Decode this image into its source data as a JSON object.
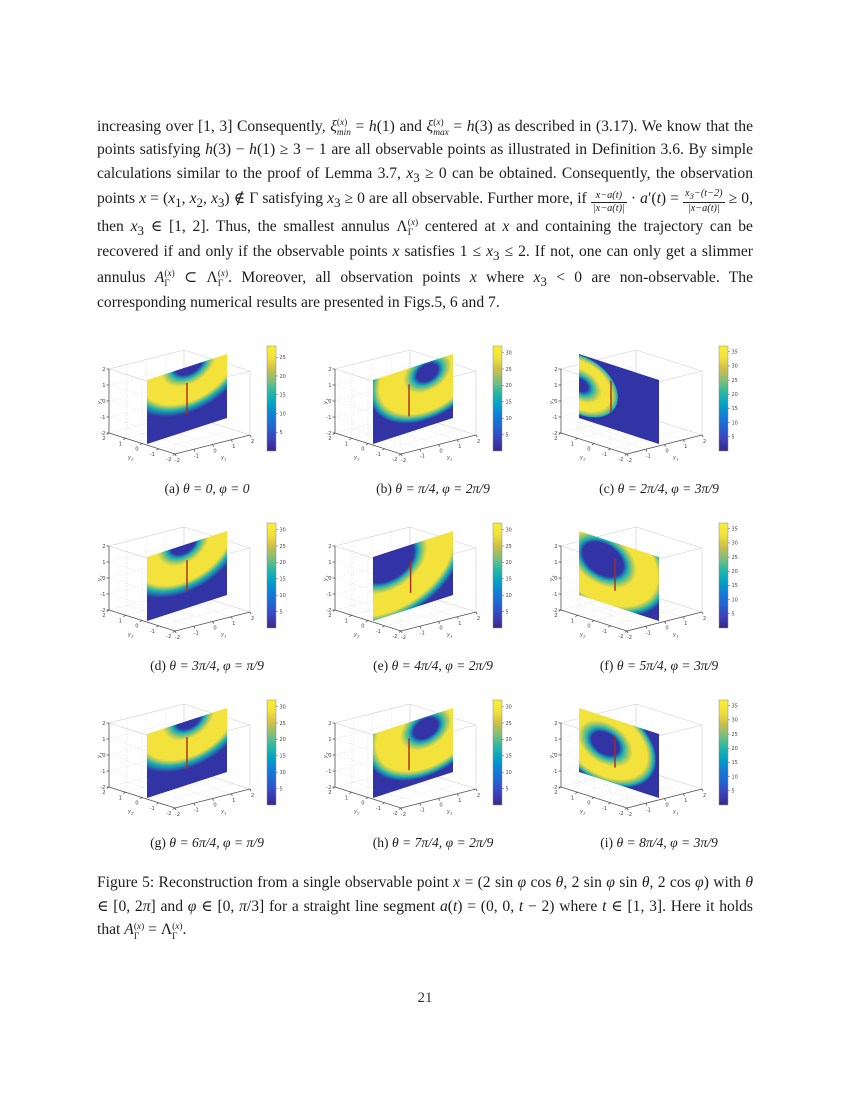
{
  "page": {
    "number": "21"
  },
  "paragraph_html": "increasing over [1, 3] Consequently, <i>ξ</i><span class='ss'><sup>(<i>x</i>)</sup><sub><i>min</i></sub></span> = <i>h</i>(1) and <i>ξ</i><span class='ss'><sup>(<i>x</i>)</sup><sub><i>max</i></sub></span> = <i>h</i>(3) as described in (3.17). We know that the points satisfying <i>h</i>(3) − <i>h</i>(1) ≥ 3 − 1 are all observable points as illustrated in Definition 3.6. By simple calculations similar to the proof of Lemma 3.7, <i>x</i><sub>3</sub> ≥ 0 can be obtained. Consequently, the observation points <i>x</i> = (<i>x</i><sub>1</sub>, <i>x</i><sub>2</sub>, <i>x</i><sub>3</sub>) ∉ Γ satisfying <i>x</i><sub>3</sub> ≥ 0 are all observable. Further more, if <span class='fr'><span>x−a(t)</span><span class='de'>|x−a(t)|</span></span> · <i>a</i>′(<i>t</i>) = <span class='fr'><span>x<sub>3</sub>−(t−2)</span><span class='de'>|x−a(t)|</span></span> ≥ 0, then <i>x</i><sub>3</sub> ∈ [1, 2]. Thus, the smallest annulus Λ<span class='ss'><sup>(<i>x</i>)</sup><sub>Γ</sub></span> centered at <i>x</i> and containing the trajectory can be recovered if and only if the observable points <i>x</i> satisfies 1 ≤ <i>x</i><sub>3</sub> ≤ 2. If not, one can only get a slimmer annulus <i>A</i><span class='ss'><sup>(<i>x</i>)</sup><sub>Γ</sub></span> ⊂ Λ<span class='ss'><sup>(<i>x</i>)</sup><sub>Γ</sub></span>. Moreover, all observation points <i>x</i> where <i>x</i><sub>3</sub> &lt; 0 are non-observable. The corresponding numerical results are presented in Figs.5, 6 and 7.",
  "figure": {
    "caption_html": "Figure 5: Reconstruction from a single observable point <i>x</i> = (2 sin <i>φ</i> cos <i>θ</i>, 2 sin <i>φ</i> sin <i>θ</i>, 2 cos <i>φ</i>) with <i>θ</i> ∈ [0, 2<i>π</i>] and <i>φ</i> ∈ [0, <i>π</i>/3] for a straight line segment <i>a</i>(<i>t</i>) = (0, 0, <i>t</i> − 2) where <i>t</i> ∈ [1, 3]. Here it holds that <i>A</i><span class='ss'><sup>(<i>x</i>)</sup><sub>Γ</sub></span> = Λ<span class='ss'><sup>(<i>x</i>)</sup><sub>Γ</sub></span>."
  },
  "chart_data": {
    "type": "heatmap",
    "description": "3x3 grid of MATLAB-style 3D slice plots (parula colormap). Each shows a vertical plane through the axes colored by the reconstruction indicator, with a red vertical segment a(t)=(0,0,t−2), t∈[1,3] at the center.",
    "colormap": "parula",
    "axes": {
      "x_label": "y1",
      "y_label": "y2",
      "z_label": "y3",
      "x_ticks": [
        -2,
        -1,
        0,
        1,
        2
      ],
      "y_ticks": [
        2,
        1,
        0,
        -1,
        -2
      ],
      "z_ticks": [
        2,
        1,
        0,
        -1,
        -2
      ],
      "xlim": [
        -2,
        2
      ],
      "ylim": [
        -2,
        2
      ],
      "zlim": [
        -2,
        2
      ],
      "grid": true
    },
    "red_segment": {
      "x": 0,
      "y": 0,
      "z_from": -1,
      "z_to": 1,
      "color": "#a62b1f"
    },
    "field_colors": {
      "low_blue": "#3233a5",
      "teal": "#18b5b4",
      "green": "#96c46a",
      "yellow": "#f3e23c"
    },
    "subplots": [
      {
        "label": "(a)",
        "theta": "0",
        "phi": "0",
        "caption": "(a) θ = 0, φ = 0",
        "colorbar_ticks": [
          5,
          10,
          15,
          20,
          25
        ],
        "cmax": 28,
        "orientation": "diag1",
        "field": {
          "cx": 0.52,
          "cy": -0.05,
          "r_in": 0.22,
          "r_out": 0.6,
          "r_cut": 0.78
        },
        "red_u": 0.5
      },
      {
        "label": "(b)",
        "theta": "π/4",
        "phi": "2π/9",
        "caption": "(b) θ = π/4, φ = 2π/9",
        "colorbar_ticks": [
          5,
          10,
          15,
          20,
          25,
          30
        ],
        "cmax": 32,
        "orientation": "diag1",
        "field": {
          "cx": 0.68,
          "cy": 0.16,
          "r_in": 0.18,
          "r_out": 0.6,
          "r_cut": 0.74
        },
        "red_u": 0.45
      },
      {
        "label": "(c)",
        "theta": "2π/4",
        "phi": "3π/9",
        "caption": "(c) θ = 2π/4, φ = 3π/9",
        "colorbar_ticks": [
          5,
          10,
          15,
          20,
          25,
          30,
          35
        ],
        "cmax": 37,
        "orientation": "diag2",
        "field": {
          "cx": 0.02,
          "cy": 0.48,
          "r_in": 0.14,
          "r_out": 0.38,
          "r_cut": 0.47
        },
        "red_u": 0.4
      },
      {
        "label": "(d)",
        "theta": "3π/4",
        "phi": "π/9",
        "caption": "(d) θ = 3π/4, φ = π/9",
        "colorbar_ticks": [
          5,
          10,
          15,
          20,
          25,
          30
        ],
        "cmax": 32,
        "orientation": "diag1",
        "field": {
          "cx": 0.45,
          "cy": -0.02,
          "r_in": 0.2,
          "r_out": 0.6,
          "r_cut": 0.78
        },
        "red_u": 0.5
      },
      {
        "label": "(e)",
        "theta": "4π/4",
        "phi": "2π/9",
        "caption": "(e) θ = 4π/4, φ = 2π/9",
        "colorbar_ticks": [
          5,
          10,
          15,
          20,
          25,
          30
        ],
        "cmax": 32,
        "orientation": "diag1",
        "field": {
          "cx": 0.18,
          "cy": 0.12,
          "r_in": 0.38,
          "r_out": 0.82,
          "r_cut": 0.98
        },
        "red_u": 0.47
      },
      {
        "label": "(f)",
        "theta": "5π/4",
        "phi": "3π/9",
        "caption": "(f) θ = 5π/4, φ = 3π/9",
        "colorbar_ticks": [
          5,
          10,
          15,
          20,
          25,
          30,
          35
        ],
        "cmax": 37,
        "orientation": "diag2",
        "field": {
          "cx": 0.3,
          "cy": 0.32,
          "r_in": 0.3,
          "r_out": 0.68,
          "r_cut": 0.82
        },
        "red_u": 0.45
      },
      {
        "label": "(g)",
        "theta": "6π/4",
        "phi": "π/9",
        "caption": "(g) θ = 6π/4, φ = π/9",
        "colorbar_ticks": [
          5,
          10,
          15,
          20,
          25,
          30
        ],
        "cmax": 32,
        "orientation": "diag1",
        "field": {
          "cx": 0.52,
          "cy": -0.03,
          "r_in": 0.2,
          "r_out": 0.6,
          "r_cut": 0.78
        },
        "red_u": 0.5
      },
      {
        "label": "(h)",
        "theta": "7π/4",
        "phi": "2π/9",
        "caption": "(h) θ = 7π/4, φ = 2π/9",
        "colorbar_ticks": [
          5,
          10,
          15,
          20,
          25,
          30
        ],
        "cmax": 32,
        "orientation": "diag1",
        "field": {
          "cx": 0.66,
          "cy": 0.18,
          "r_in": 0.2,
          "r_out": 0.62,
          "r_cut": 0.76
        },
        "red_u": 0.45
      },
      {
        "label": "(i)",
        "theta": "8π/4",
        "phi": "3π/9",
        "caption": "(i) θ = 8π/4, φ = 3π/9",
        "colorbar_ticks": [
          5,
          10,
          15,
          20,
          25,
          30,
          35
        ],
        "cmax": 37,
        "orientation": "diag2",
        "field": {
          "cx": 0.33,
          "cy": 0.42,
          "r_in": 0.22,
          "r_out": 0.52,
          "r_cut": 0.64
        },
        "red_u": 0.45
      }
    ]
  },
  "colors": {
    "parula_bottom": "#352a87",
    "parula_top": "#f9ef2f",
    "red_line": "#a62b1f",
    "axis_line": "#555555",
    "grid_line": "#dcdcdc"
  }
}
